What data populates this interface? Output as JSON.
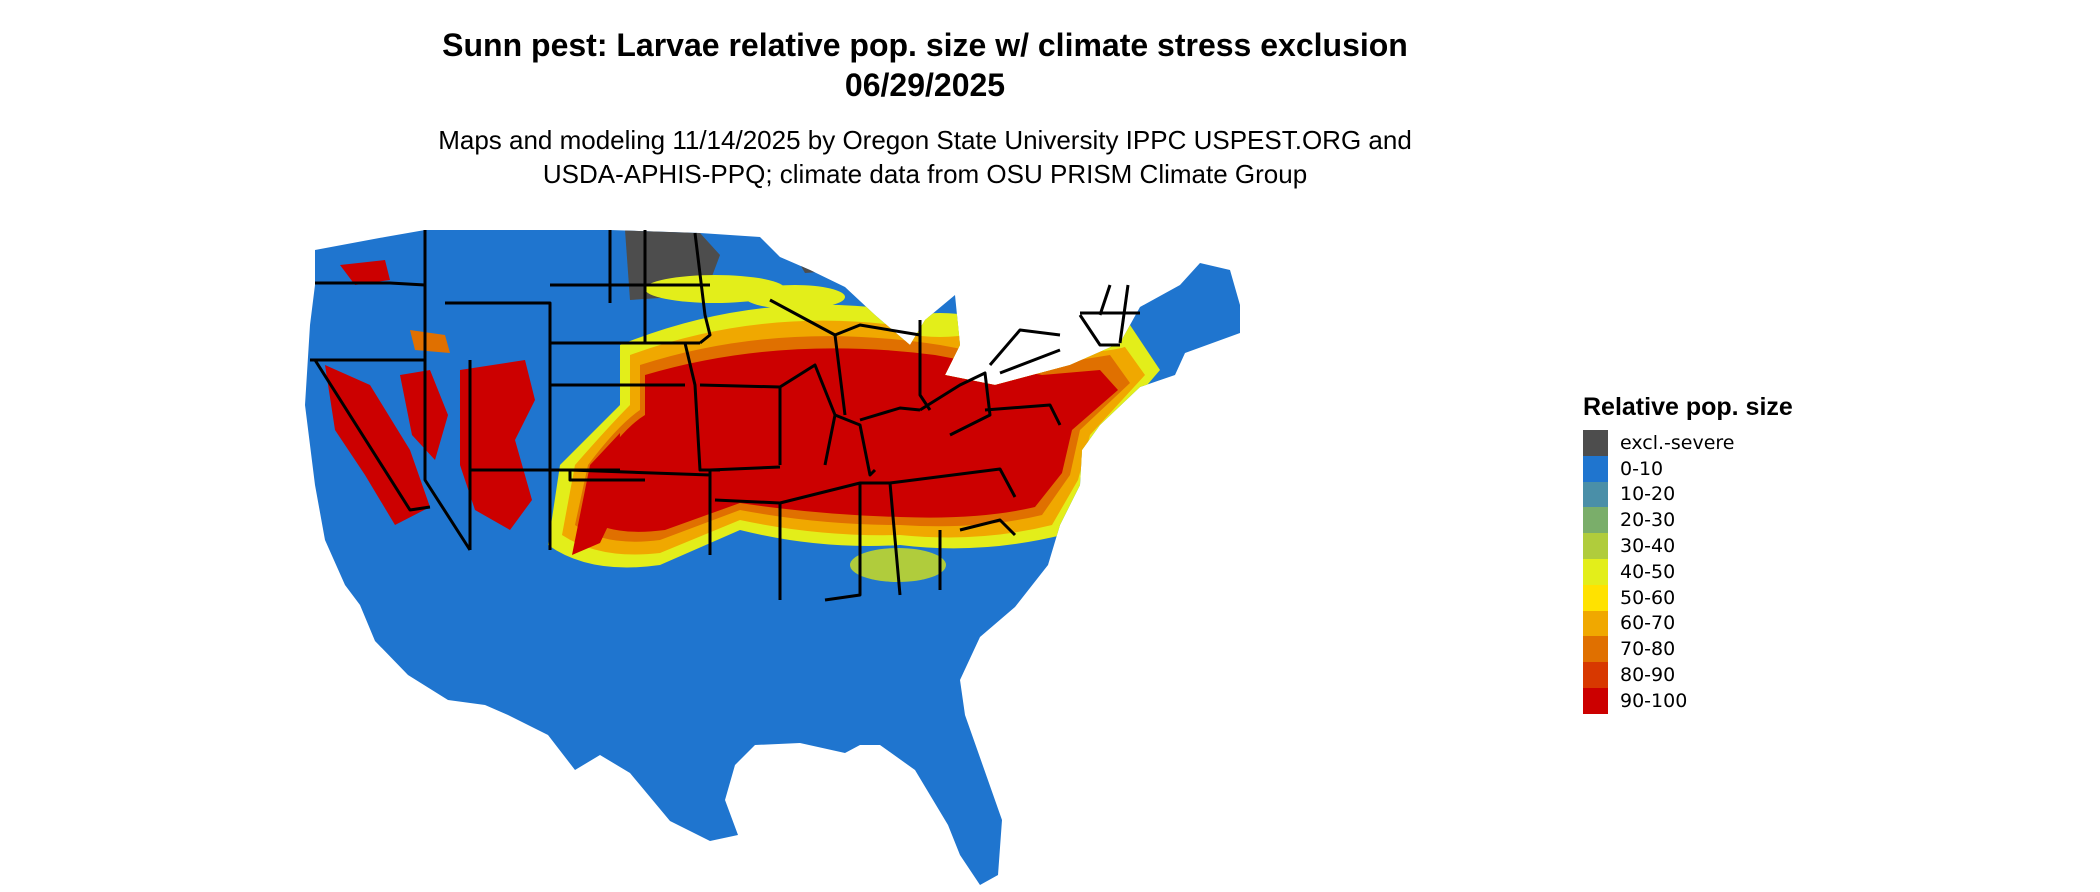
{
  "title": {
    "line1": "Sunn pest: Larvae relative pop. size w/ climate stress exclusion",
    "line2": "06/29/2025"
  },
  "subtitle": {
    "line1": "Maps and modeling 11/14/2025 by Oregon State University IPPC USPEST.ORG and",
    "line2": "USDA-APHIS-PPQ; climate data from OSU PRISM Climate Group"
  },
  "legend": {
    "title": "Relative pop. size",
    "items": [
      {
        "label": "excl.-severe",
        "color": "#4d4d4d"
      },
      {
        "label": "0-10",
        "color": "#1f75cf"
      },
      {
        "label": "10-20",
        "color": "#4a8fa8"
      },
      {
        "label": "20-30",
        "color": "#7aae6a"
      },
      {
        "label": "30-40",
        "color": "#b0cc3c"
      },
      {
        "label": "40-50",
        "color": "#e3ee1a"
      },
      {
        "label": "50-60",
        "color": "#ffe200"
      },
      {
        "label": "60-70",
        "color": "#f0a800"
      },
      {
        "label": "70-80",
        "color": "#e07000"
      },
      {
        "label": "80-90",
        "color": "#d83800"
      },
      {
        "label": "90-100",
        "color": "#cc0000"
      }
    ]
  }
}
